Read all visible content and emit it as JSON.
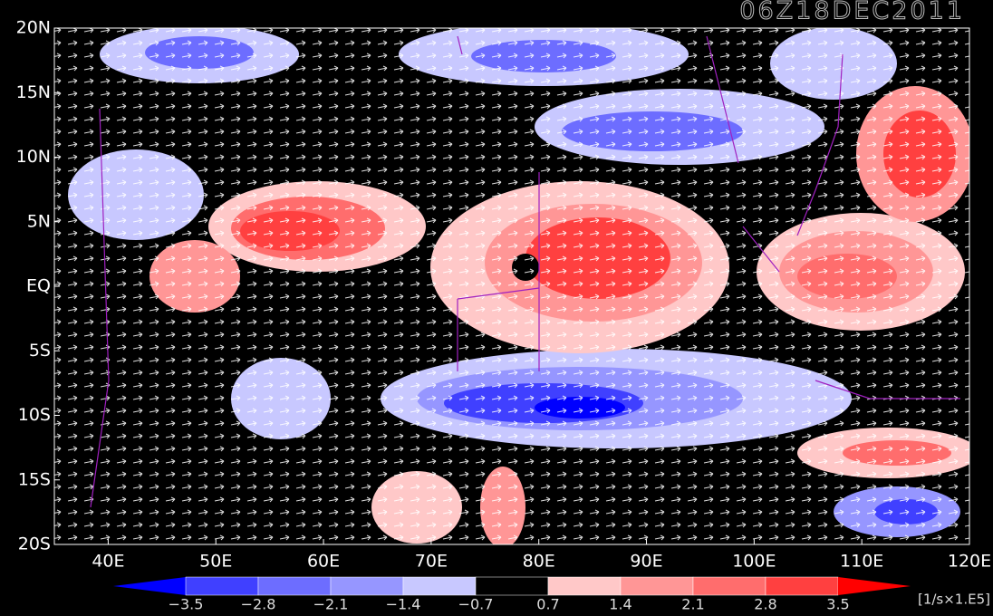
{
  "map": {
    "title": "06Z18DEC2011",
    "xlim": [
      35,
      120
    ],
    "ylim": [
      -20,
      20
    ],
    "xticks": [
      {
        "value": 40,
        "label": "40E"
      },
      {
        "value": 50,
        "label": "50E"
      },
      {
        "value": 60,
        "label": "60E"
      },
      {
        "value": 70,
        "label": "70E"
      },
      {
        "value": 80,
        "label": "80E"
      },
      {
        "value": 90,
        "label": "90E"
      },
      {
        "value": 100,
        "label": "100E"
      },
      {
        "value": 110,
        "label": "110E"
      },
      {
        "value": 120,
        "label": "120E"
      }
    ],
    "yticks": [
      {
        "value": 20,
        "label": "20N"
      },
      {
        "value": 15,
        "label": "15N"
      },
      {
        "value": 10,
        "label": "10N"
      },
      {
        "value": 5,
        "label": "5N"
      },
      {
        "value": 0,
        "label": "EQ"
      },
      {
        "value": -5,
        "label": "5S"
      },
      {
        "value": -10,
        "label": "10S"
      },
      {
        "value": -15,
        "label": "15S"
      },
      {
        "value": -20,
        "label": "20S"
      }
    ],
    "colorbar": {
      "levels": [
        {
          "value": -3.5,
          "label": "−3.5"
        },
        {
          "value": -2.8,
          "label": "−2.8"
        },
        {
          "value": -2.1,
          "label": "−2.1"
        },
        {
          "value": -1.4,
          "label": "−1.4"
        },
        {
          "value": -0.7,
          "label": "−0.7"
        },
        {
          "value": 0.7,
          "label": "0.7"
        },
        {
          "value": 1.4,
          "label": "1.4"
        },
        {
          "value": 2.1,
          "label": "2.1"
        },
        {
          "value": 2.8,
          "label": "2.8"
        },
        {
          "value": 3.5,
          "label": "3.5"
        }
      ],
      "colors": [
        "#0000ff",
        "#4040ff",
        "#6d6dff",
        "#9696ff",
        "#c8c8ff",
        "#000000",
        "#ffc8c8",
        "#ff9696",
        "#ff6d6d",
        "#ff4040",
        "#ff0000"
      ],
      "unit": "[1/s×1.E5]"
    }
  }
}
